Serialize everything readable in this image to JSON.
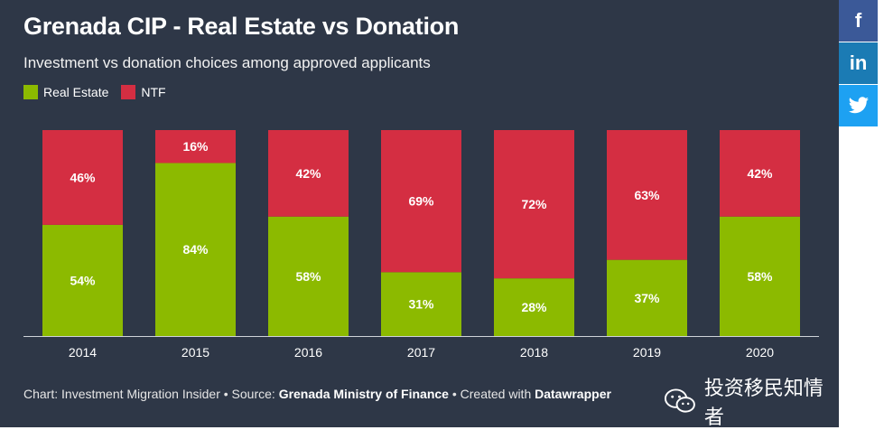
{
  "header": {
    "title": "Grenada CIP - Real Estate vs Donation",
    "subtitle": "Investment vs donation choices among approved applicants"
  },
  "colors": {
    "real_estate": "#8cba00",
    "ntf": "#d42e42",
    "background": "#2e3747"
  },
  "chart_data": {
    "type": "bar",
    "stacked": true,
    "title": "Grenada CIP - Real Estate vs Donation",
    "subtitle": "Investment vs donation choices among approved applicants",
    "categories": [
      "2014",
      "2015",
      "2016",
      "2017",
      "2018",
      "2019",
      "2020"
    ],
    "series": [
      {
        "name": "Real Estate",
        "values": [
          54,
          84,
          58,
          31,
          28,
          37,
          58
        ]
      },
      {
        "name": "NTF",
        "values": [
          46,
          16,
          42,
          69,
          72,
          63,
          42
        ]
      }
    ],
    "value_suffix": "%",
    "ylim": [
      0,
      100
    ],
    "xlabel": "",
    "ylabel": "",
    "legend": "top-left"
  },
  "footer": {
    "prefix": "Chart: Investment Migration Insider • Source: ",
    "source": "Grenada Ministry of Finance",
    "middle": " • Created with ",
    "tool": "Datawrapper"
  },
  "share": {
    "facebook": "f",
    "linkedin": "in",
    "twitter_icon": "twitter-icon"
  },
  "watermark": {
    "text": "投资移民知情者"
  }
}
